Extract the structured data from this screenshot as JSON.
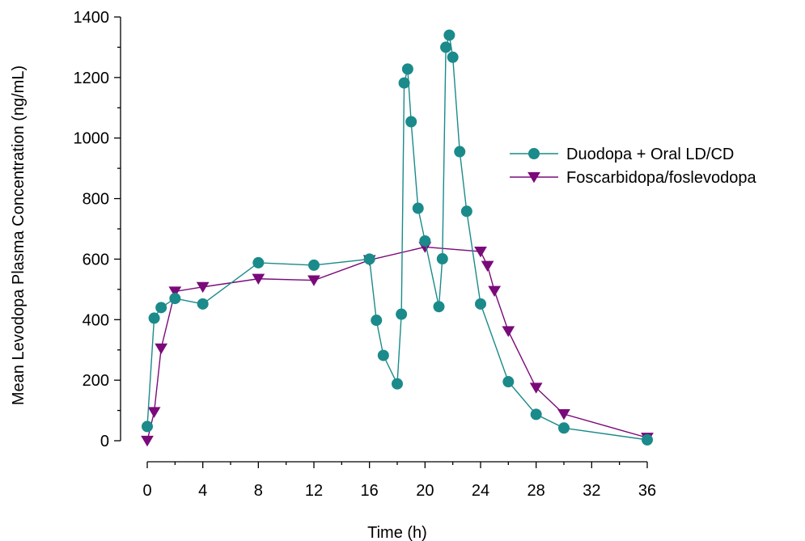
{
  "chart_data": {
    "type": "line",
    "xlabel": "Time (h)",
    "ylabel": "Mean Levodopa Plasma Concentration (ng/mL)",
    "xlim": [
      0,
      36
    ],
    "ylim": [
      0,
      1400
    ],
    "xticks": [
      0,
      4,
      8,
      12,
      16,
      20,
      24,
      28,
      32,
      36
    ],
    "yticks": [
      0,
      200,
      400,
      600,
      800,
      1000,
      1200,
      1400
    ],
    "grid": false,
    "legend_position": "right",
    "series": [
      {
        "name": "Duodopa + Oral LD/CD",
        "color": "#1b8a8a",
        "marker": "circle",
        "points": [
          [
            0,
            47
          ],
          [
            0.5,
            405
          ],
          [
            1,
            440
          ],
          [
            2,
            470
          ],
          [
            4,
            452
          ],
          [
            8,
            588
          ],
          [
            12,
            580
          ],
          [
            16,
            600
          ],
          [
            16.5,
            398
          ],
          [
            17,
            282
          ],
          [
            18,
            188
          ],
          [
            18.3,
            418
          ],
          [
            18.5,
            1182
          ],
          [
            18.75,
            1228
          ],
          [
            19,
            1054
          ],
          [
            19.5,
            768
          ],
          [
            20,
            660
          ],
          [
            21,
            443
          ],
          [
            21.25,
            601
          ],
          [
            21.5,
            1300
          ],
          [
            21.75,
            1340
          ],
          [
            22,
            1267
          ],
          [
            22.5,
            955
          ],
          [
            23,
            758
          ],
          [
            24,
            452
          ],
          [
            26,
            195
          ],
          [
            28,
            87
          ],
          [
            30,
            42
          ],
          [
            36,
            3
          ]
        ]
      },
      {
        "name": "Foscarbidopa/foslevodopa",
        "color": "#7a0a7a",
        "marker": "triangle-down",
        "points": [
          [
            0,
            0
          ],
          [
            0.5,
            95
          ],
          [
            1,
            305
          ],
          [
            2,
            493
          ],
          [
            4,
            508
          ],
          [
            8,
            535
          ],
          [
            12,
            530
          ],
          [
            16,
            597
          ],
          [
            20,
            640
          ],
          [
            24,
            625
          ],
          [
            24.5,
            578
          ],
          [
            25,
            495
          ],
          [
            26,
            362
          ],
          [
            28,
            175
          ],
          [
            30,
            88
          ],
          [
            36,
            10
          ]
        ]
      }
    ]
  }
}
